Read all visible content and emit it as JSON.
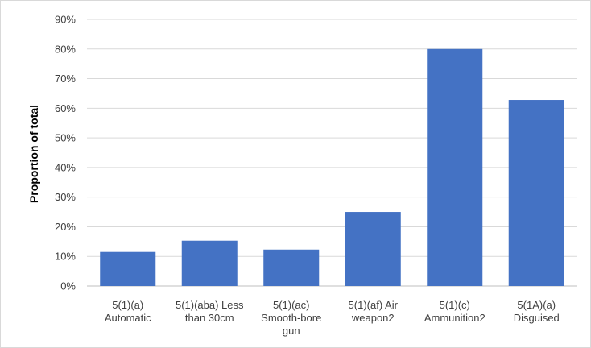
{
  "chart_data": {
    "type": "bar",
    "title": "",
    "xlabel": "",
    "ylabel": "Proportion of total",
    "ylim": [
      0,
      0.9
    ],
    "yticks": [
      "0%",
      "10%",
      "20%",
      "30%",
      "40%",
      "50%",
      "60%",
      "70%",
      "80%",
      "90%"
    ],
    "grid": true,
    "legend": "none",
    "bar_color": "#4472c4",
    "categories": [
      "5(1)(a) Automatic",
      "5(1)(aba) Less than 30cm",
      "5(1)(ac) Smooth-bore gun",
      "5(1)(af) Air weapon2",
      "5(1)(c) Ammunition2",
      "5(1A)(a) Disguised"
    ],
    "category_lines": [
      [
        "5(1)(a)",
        "Automatic"
      ],
      [
        "5(1)(aba) Less",
        "than 30cm"
      ],
      [
        "5(1)(ac)",
        "Smooth-bore",
        "gun"
      ],
      [
        "5(1)(af) Air",
        "weapon2"
      ],
      [
        "5(1)(c)",
        "Ammunition2"
      ],
      [
        "5(1A)(a)",
        "Disguised"
      ]
    ],
    "values": [
      0.115,
      0.153,
      0.123,
      0.25,
      0.8,
      0.628
    ]
  }
}
